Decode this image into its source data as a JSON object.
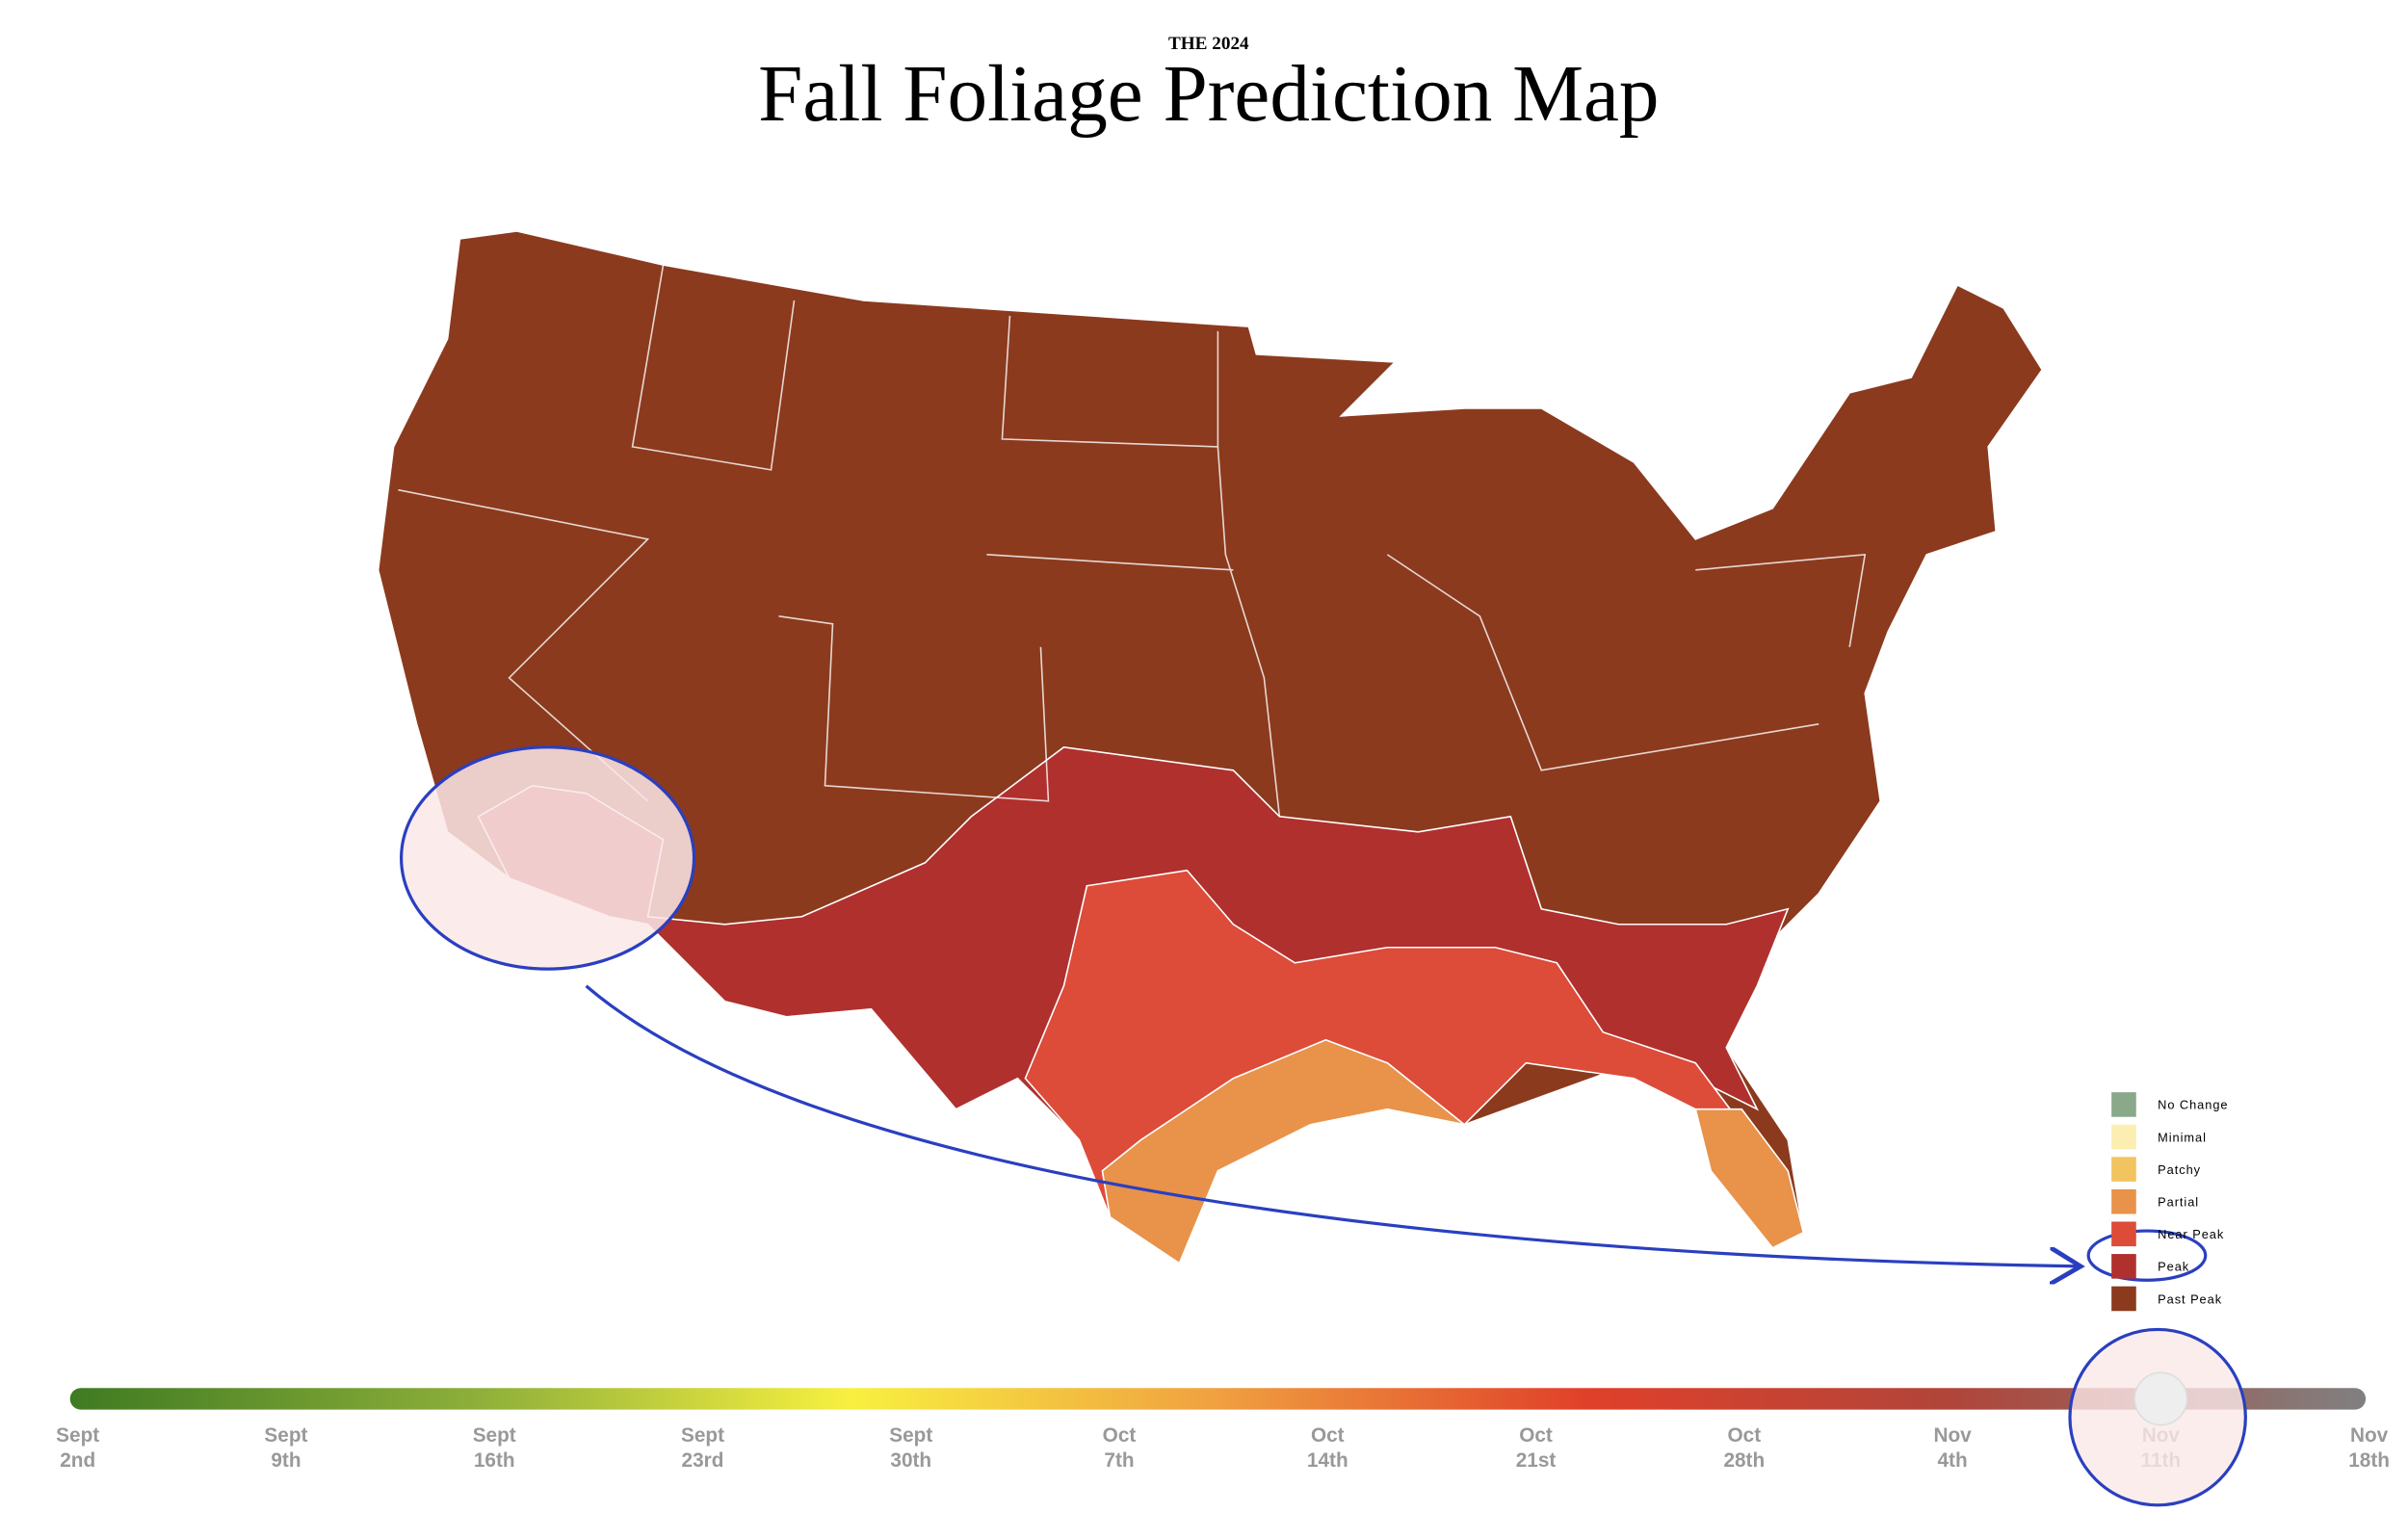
{
  "header": {
    "supertitle": "THE 2024",
    "title": "Fall Foliage Prediction Map"
  },
  "legend": {
    "items": [
      {
        "label": "No Change",
        "color": "#8aa88a"
      },
      {
        "label": "Minimal",
        "color": "#fbeeb0"
      },
      {
        "label": "Patchy",
        "color": "#f2c460"
      },
      {
        "label": "Partial",
        "color": "#e8924a"
      },
      {
        "label": "Near Peak",
        "color": "#dd4b39"
      },
      {
        "label": "Peak",
        "color": "#b0302e"
      },
      {
        "label": "Past Peak",
        "color": "#8b3a1e"
      }
    ]
  },
  "timeline": {
    "labels": [
      {
        "month": "Sept",
        "day": "2nd"
      },
      {
        "month": "Sept",
        "day": "9th"
      },
      {
        "month": "Sept",
        "day": "16th"
      },
      {
        "month": "Sept",
        "day": "23rd"
      },
      {
        "month": "Sept",
        "day": "30th"
      },
      {
        "month": "Oct",
        "day": "7th"
      },
      {
        "month": "Oct",
        "day": "14th"
      },
      {
        "month": "Oct",
        "day": "21st"
      },
      {
        "month": "Oct",
        "day": "28th"
      },
      {
        "month": "Nov",
        "day": "4th"
      },
      {
        "month": "Nov",
        "day": "11th"
      },
      {
        "month": "Nov",
        "day": "18th"
      }
    ]
  }
}
